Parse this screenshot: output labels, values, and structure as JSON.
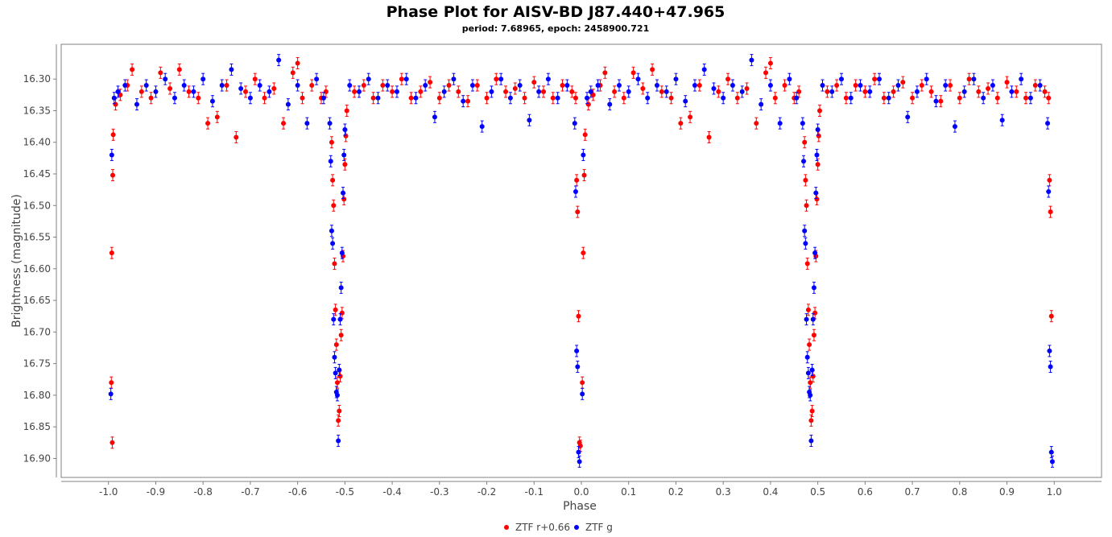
{
  "chart_data": {
    "type": "scatter",
    "title": "Phase Plot for AISV-BD J87.440+47.965",
    "subtitle": "period: 7.68965, epoch: 2458900.721",
    "xlabel": "Phase",
    "ylabel": "Brightness (magnitude)",
    "xlim": [
      -1.1,
      1.1
    ],
    "ylim": [
      16.93,
      16.245
    ],
    "y_inverted": true,
    "xticks": [
      "-1.0",
      "-0.9",
      "-0.8",
      "-0.7",
      "-0.6",
      "-0.5",
      "-0.4",
      "-0.3",
      "-0.2",
      "-0.1",
      "0.0",
      "0.1",
      "0.2",
      "0.3",
      "0.4",
      "0.5",
      "0.6",
      "0.7",
      "0.8",
      "0.9",
      "1.0"
    ],
    "yticks": [
      "16.30",
      "16.35",
      "16.40",
      "16.45",
      "16.50",
      "16.55",
      "16.60",
      "16.65",
      "16.70",
      "16.75",
      "16.80",
      "16.85",
      "16.90"
    ],
    "error_bars": true,
    "grid": false,
    "legend_position": "bottom-center",
    "series": [
      {
        "name": "ZTF r+0.66",
        "color": "#ff0000",
        "points": [
          [
            -0.992,
            16.875
          ],
          [
            -0.994,
            16.78
          ],
          [
            -0.993,
            16.575
          ],
          [
            -0.991,
            16.452
          ],
          [
            -0.99,
            16.388
          ],
          [
            -0.985,
            16.34
          ],
          [
            -0.975,
            16.325
          ],
          [
            -0.96,
            16.31
          ],
          [
            -0.95,
            16.285
          ],
          [
            -0.93,
            16.32
          ],
          [
            -0.91,
            16.33
          ],
          [
            -0.89,
            16.29
          ],
          [
            -0.87,
            16.315
          ],
          [
            -0.85,
            16.285
          ],
          [
            -0.83,
            16.32
          ],
          [
            -0.81,
            16.33
          ],
          [
            -0.79,
            16.37
          ],
          [
            -0.77,
            16.36
          ],
          [
            -0.75,
            16.31
          ],
          [
            -0.73,
            16.392
          ],
          [
            -0.71,
            16.32
          ],
          [
            -0.69,
            16.3
          ],
          [
            -0.67,
            16.33
          ],
          [
            -0.65,
            16.315
          ],
          [
            -0.63,
            16.37
          ],
          [
            -0.61,
            16.29
          ],
          [
            -0.6,
            16.275
          ],
          [
            -0.59,
            16.33
          ],
          [
            -0.57,
            16.31
          ],
          [
            -0.55,
            16.33
          ],
          [
            -0.54,
            16.32
          ],
          [
            -0.528,
            16.4
          ],
          [
            -0.526,
            16.46
          ],
          [
            -0.524,
            16.5
          ],
          [
            -0.522,
            16.592
          ],
          [
            -0.52,
            16.665
          ],
          [
            -0.518,
            16.72
          ],
          [
            -0.516,
            16.78
          ],
          [
            -0.514,
            16.84
          ],
          [
            -0.512,
            16.825
          ],
          [
            -0.51,
            16.77
          ],
          [
            -0.508,
            16.705
          ],
          [
            -0.506,
            16.67
          ],
          [
            -0.504,
            16.58
          ],
          [
            -0.502,
            16.49
          ],
          [
            -0.5,
            16.435
          ],
          [
            -0.498,
            16.39
          ],
          [
            -0.496,
            16.35
          ],
          [
            -0.48,
            16.32
          ],
          [
            -0.46,
            16.31
          ],
          [
            -0.44,
            16.33
          ],
          [
            -0.42,
            16.31
          ],
          [
            -0.4,
            16.32
          ],
          [
            -0.38,
            16.3
          ],
          [
            -0.36,
            16.33
          ],
          [
            -0.34,
            16.32
          ],
          [
            -0.32,
            16.305
          ],
          [
            -0.3,
            16.33
          ],
          [
            -0.28,
            16.31
          ],
          [
            -0.26,
            16.32
          ],
          [
            -0.24,
            16.335
          ],
          [
            -0.22,
            16.31
          ],
          [
            -0.2,
            16.33
          ],
          [
            -0.18,
            16.3
          ],
          [
            -0.16,
            16.32
          ],
          [
            -0.14,
            16.315
          ],
          [
            -0.12,
            16.33
          ],
          [
            -0.1,
            16.305
          ],
          [
            -0.08,
            16.32
          ],
          [
            -0.06,
            16.33
          ],
          [
            -0.04,
            16.31
          ],
          [
            -0.02,
            16.32
          ],
          [
            -0.012,
            16.33
          ],
          [
            -0.01,
            16.46
          ],
          [
            -0.008,
            16.51
          ],
          [
            -0.006,
            16.675
          ],
          [
            -0.004,
            16.875
          ],
          [
            -0.002,
            16.88
          ],
          [
            0.002,
            16.78
          ],
          [
            0.004,
            16.575
          ],
          [
            0.006,
            16.452
          ],
          [
            0.008,
            16.388
          ],
          [
            0.015,
            16.34
          ],
          [
            0.025,
            16.325
          ],
          [
            0.04,
            16.31
          ],
          [
            0.05,
            16.29
          ],
          [
            0.07,
            16.32
          ],
          [
            0.09,
            16.33
          ],
          [
            0.11,
            16.29
          ],
          [
            0.13,
            16.315
          ],
          [
            0.15,
            16.285
          ],
          [
            0.17,
            16.32
          ],
          [
            0.19,
            16.33
          ],
          [
            0.21,
            16.37
          ],
          [
            0.23,
            16.36
          ],
          [
            0.25,
            16.31
          ],
          [
            0.27,
            16.392
          ],
          [
            0.29,
            16.32
          ],
          [
            0.31,
            16.3
          ],
          [
            0.33,
            16.33
          ],
          [
            0.35,
            16.315
          ],
          [
            0.37,
            16.37
          ],
          [
            0.39,
            16.29
          ],
          [
            0.4,
            16.275
          ],
          [
            0.41,
            16.33
          ],
          [
            0.43,
            16.31
          ],
          [
            0.45,
            16.33
          ],
          [
            0.46,
            16.32
          ],
          [
            0.472,
            16.4
          ],
          [
            0.474,
            16.46
          ],
          [
            0.476,
            16.5
          ],
          [
            0.478,
            16.592
          ],
          [
            0.48,
            16.665
          ],
          [
            0.482,
            16.72
          ],
          [
            0.484,
            16.78
          ],
          [
            0.486,
            16.84
          ],
          [
            0.488,
            16.825
          ],
          [
            0.49,
            16.77
          ],
          [
            0.492,
            16.705
          ],
          [
            0.494,
            16.67
          ],
          [
            0.496,
            16.58
          ],
          [
            0.498,
            16.49
          ],
          [
            0.5,
            16.435
          ],
          [
            0.502,
            16.39
          ],
          [
            0.504,
            16.35
          ],
          [
            0.52,
            16.32
          ],
          [
            0.54,
            16.31
          ],
          [
            0.56,
            16.33
          ],
          [
            0.58,
            16.31
          ],
          [
            0.6,
            16.32
          ],
          [
            0.62,
            16.3
          ],
          [
            0.64,
            16.33
          ],
          [
            0.66,
            16.32
          ],
          [
            0.68,
            16.305
          ],
          [
            0.7,
            16.33
          ],
          [
            0.72,
            16.31
          ],
          [
            0.74,
            16.32
          ],
          [
            0.76,
            16.335
          ],
          [
            0.78,
            16.31
          ],
          [
            0.8,
            16.33
          ],
          [
            0.82,
            16.3
          ],
          [
            0.84,
            16.32
          ],
          [
            0.86,
            16.315
          ],
          [
            0.88,
            16.33
          ],
          [
            0.9,
            16.305
          ],
          [
            0.92,
            16.32
          ],
          [
            0.94,
            16.33
          ],
          [
            0.96,
            16.31
          ],
          [
            0.98,
            16.32
          ],
          [
            0.988,
            16.33
          ],
          [
            0.99,
            16.46
          ],
          [
            0.992,
            16.51
          ],
          [
            0.994,
            16.675
          ]
        ]
      },
      {
        "name": "ZTF g",
        "color": "#0000ff",
        "points": [
          [
            -0.995,
            16.798
          ],
          [
            -0.993,
            16.42
          ],
          [
            -0.988,
            16.33
          ],
          [
            -0.98,
            16.32
          ],
          [
            -0.965,
            16.31
          ],
          [
            -0.94,
            16.34
          ],
          [
            -0.92,
            16.31
          ],
          [
            -0.9,
            16.32
          ],
          [
            -0.88,
            16.3
          ],
          [
            -0.86,
            16.33
          ],
          [
            -0.84,
            16.31
          ],
          [
            -0.82,
            16.32
          ],
          [
            -0.8,
            16.3
          ],
          [
            -0.78,
            16.335
          ],
          [
            -0.76,
            16.31
          ],
          [
            -0.74,
            16.285
          ],
          [
            -0.72,
            16.315
          ],
          [
            -0.7,
            16.33
          ],
          [
            -0.68,
            16.31
          ],
          [
            -0.66,
            16.32
          ],
          [
            -0.64,
            16.27
          ],
          [
            -0.62,
            16.34
          ],
          [
            -0.6,
            16.31
          ],
          [
            -0.58,
            16.37
          ],
          [
            -0.56,
            16.3
          ],
          [
            -0.545,
            16.33
          ],
          [
            -0.532,
            16.37
          ],
          [
            -0.53,
            16.43
          ],
          [
            -0.528,
            16.54
          ],
          [
            -0.526,
            16.56
          ],
          [
            -0.524,
            16.68
          ],
          [
            -0.522,
            16.74
          ],
          [
            -0.52,
            16.765
          ],
          [
            -0.518,
            16.795
          ],
          [
            -0.516,
            16.8
          ],
          [
            -0.514,
            16.872
          ],
          [
            -0.512,
            16.76
          ],
          [
            -0.51,
            16.68
          ],
          [
            -0.508,
            16.63
          ],
          [
            -0.506,
            16.575
          ],
          [
            -0.504,
            16.48
          ],
          [
            -0.502,
            16.42
          ],
          [
            -0.5,
            16.38
          ],
          [
            -0.49,
            16.31
          ],
          [
            -0.47,
            16.32
          ],
          [
            -0.45,
            16.3
          ],
          [
            -0.43,
            16.33
          ],
          [
            -0.41,
            16.31
          ],
          [
            -0.39,
            16.32
          ],
          [
            -0.37,
            16.3
          ],
          [
            -0.35,
            16.33
          ],
          [
            -0.33,
            16.31
          ],
          [
            -0.31,
            16.36
          ],
          [
            -0.29,
            16.32
          ],
          [
            -0.27,
            16.3
          ],
          [
            -0.25,
            16.335
          ],
          [
            -0.23,
            16.31
          ],
          [
            -0.21,
            16.375
          ],
          [
            -0.19,
            16.32
          ],
          [
            -0.17,
            16.3
          ],
          [
            -0.15,
            16.33
          ],
          [
            -0.13,
            16.31
          ],
          [
            -0.11,
            16.365
          ],
          [
            -0.09,
            16.32
          ],
          [
            -0.07,
            16.3
          ],
          [
            -0.05,
            16.33
          ],
          [
            -0.03,
            16.31
          ],
          [
            -0.014,
            16.37
          ],
          [
            -0.012,
            16.478
          ],
          [
            -0.01,
            16.73
          ],
          [
            -0.008,
            16.755
          ],
          [
            -0.006,
            16.89
          ],
          [
            -0.004,
            16.905
          ],
          [
            0.002,
            16.798
          ],
          [
            0.004,
            16.42
          ],
          [
            0.012,
            16.33
          ],
          [
            0.02,
            16.32
          ],
          [
            0.035,
            16.31
          ],
          [
            0.06,
            16.34
          ],
          [
            0.08,
            16.31
          ],
          [
            0.1,
            16.32
          ],
          [
            0.12,
            16.3
          ],
          [
            0.14,
            16.33
          ],
          [
            0.16,
            16.31
          ],
          [
            0.18,
            16.32
          ],
          [
            0.2,
            16.3
          ],
          [
            0.22,
            16.335
          ],
          [
            0.24,
            16.31
          ],
          [
            0.26,
            16.285
          ],
          [
            0.28,
            16.315
          ],
          [
            0.3,
            16.33
          ],
          [
            0.32,
            16.31
          ],
          [
            0.34,
            16.32
          ],
          [
            0.36,
            16.27
          ],
          [
            0.38,
            16.34
          ],
          [
            0.4,
            16.31
          ],
          [
            0.42,
            16.37
          ],
          [
            0.44,
            16.3
          ],
          [
            0.455,
            16.33
          ],
          [
            0.468,
            16.37
          ],
          [
            0.47,
            16.43
          ],
          [
            0.472,
            16.54
          ],
          [
            0.474,
            16.56
          ],
          [
            0.476,
            16.68
          ],
          [
            0.478,
            16.74
          ],
          [
            0.48,
            16.765
          ],
          [
            0.482,
            16.795
          ],
          [
            0.484,
            16.8
          ],
          [
            0.486,
            16.872
          ],
          [
            0.488,
            16.76
          ],
          [
            0.49,
            16.68
          ],
          [
            0.492,
            16.63
          ],
          [
            0.494,
            16.575
          ],
          [
            0.496,
            16.48
          ],
          [
            0.498,
            16.42
          ],
          [
            0.5,
            16.38
          ],
          [
            0.51,
            16.31
          ],
          [
            0.53,
            16.32
          ],
          [
            0.55,
            16.3
          ],
          [
            0.57,
            16.33
          ],
          [
            0.59,
            16.31
          ],
          [
            0.61,
            16.32
          ],
          [
            0.63,
            16.3
          ],
          [
            0.65,
            16.33
          ],
          [
            0.67,
            16.31
          ],
          [
            0.69,
            16.36
          ],
          [
            0.71,
            16.32
          ],
          [
            0.73,
            16.3
          ],
          [
            0.75,
            16.335
          ],
          [
            0.77,
            16.31
          ],
          [
            0.79,
            16.375
          ],
          [
            0.81,
            16.32
          ],
          [
            0.83,
            16.3
          ],
          [
            0.85,
            16.33
          ],
          [
            0.87,
            16.31
          ],
          [
            0.89,
            16.365
          ],
          [
            0.91,
            16.32
          ],
          [
            0.93,
            16.3
          ],
          [
            0.95,
            16.33
          ],
          [
            0.97,
            16.31
          ],
          [
            0.986,
            16.37
          ],
          [
            0.988,
            16.478
          ],
          [
            0.99,
            16.73
          ],
          [
            0.992,
            16.755
          ],
          [
            0.994,
            16.89
          ],
          [
            0.996,
            16.905
          ]
        ]
      }
    ]
  }
}
